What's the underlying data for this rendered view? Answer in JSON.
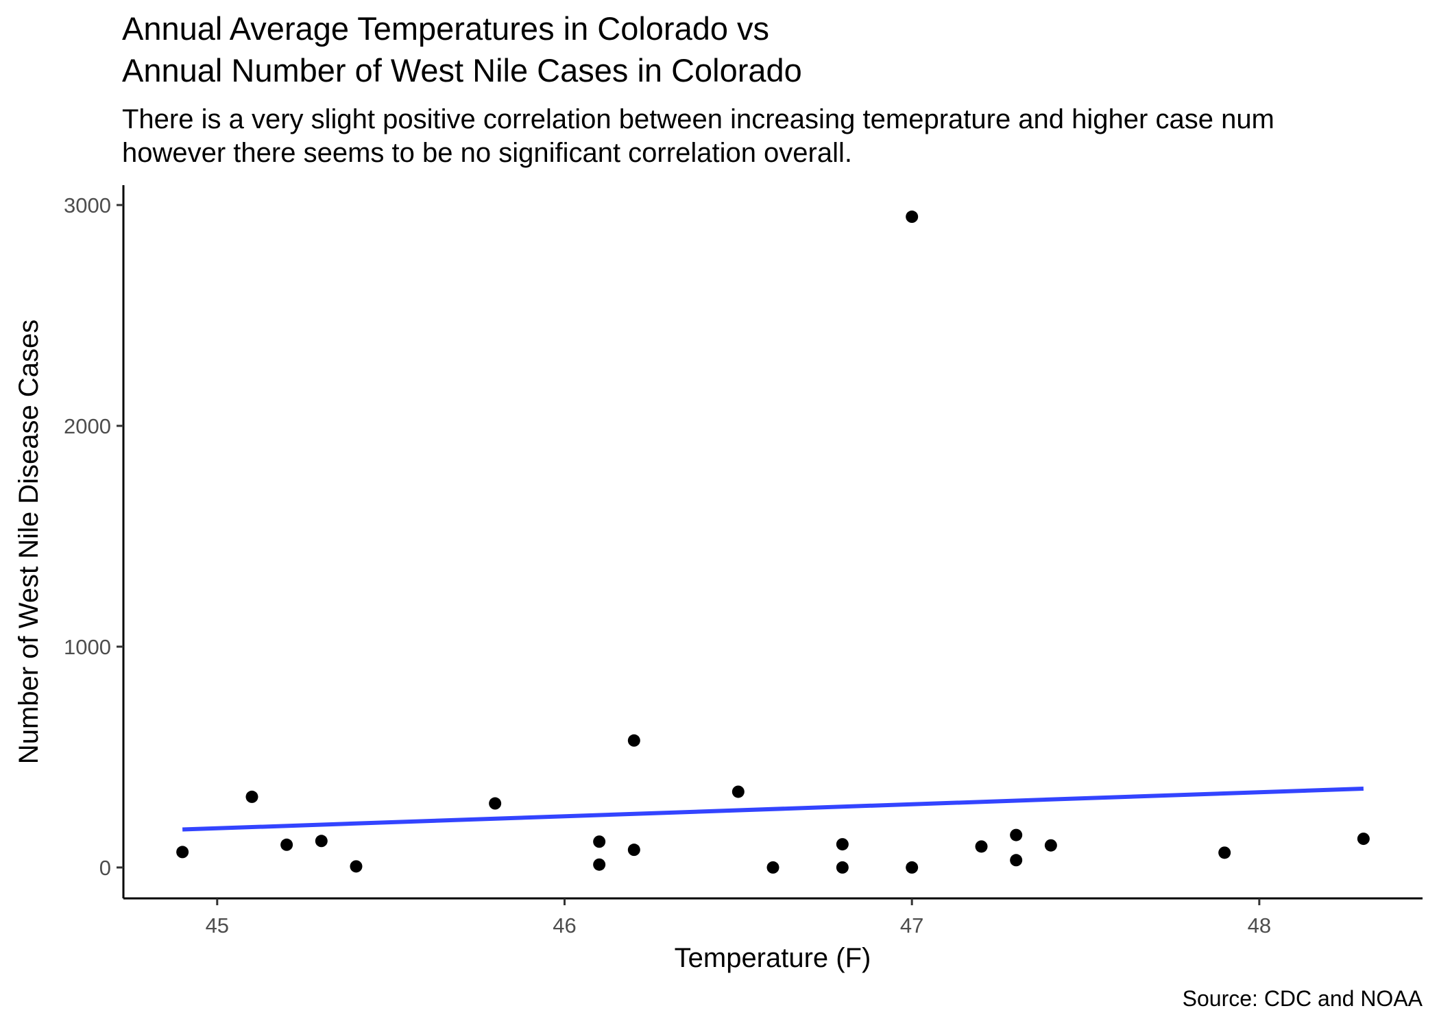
{
  "chart_data": {
    "type": "scatter",
    "title_lines": [
      "Annual Average Temperatures in Colorado vs",
      "Annual Number of West Nile Cases in Colorado"
    ],
    "subtitle_lines": [
      "There is a very slight positive correlation between increasing temeprature and higher case num",
      "however there seems to be no significant correlation overall."
    ],
    "xlabel": "Temperature (F)",
    "ylabel": "Number of West Nile Disease Cases",
    "caption": "Source: CDC and NOAA",
    "xlim": [
      44.73,
      48.47
    ],
    "ylim": [
      -140,
      3090
    ],
    "x_ticks": [
      45,
      46,
      47,
      48
    ],
    "y_ticks": [
      0,
      1000,
      2000,
      3000
    ],
    "grid": false,
    "points": [
      {
        "x": 44.9,
        "y": 70
      },
      {
        "x": 45.1,
        "y": 320
      },
      {
        "x": 45.2,
        "y": 103
      },
      {
        "x": 45.3,
        "y": 120
      },
      {
        "x": 45.4,
        "y": 5
      },
      {
        "x": 45.8,
        "y": 290
      },
      {
        "x": 46.1,
        "y": 117
      },
      {
        "x": 46.1,
        "y": 13
      },
      {
        "x": 46.2,
        "y": 575
      },
      {
        "x": 46.2,
        "y": 80
      },
      {
        "x": 46.5,
        "y": 343
      },
      {
        "x": 46.6,
        "y": 0
      },
      {
        "x": 46.8,
        "y": 105
      },
      {
        "x": 46.8,
        "y": 0
      },
      {
        "x": 47.0,
        "y": 2947
      },
      {
        "x": 47.0,
        "y": 0
      },
      {
        "x": 47.2,
        "y": 95
      },
      {
        "x": 47.3,
        "y": 147
      },
      {
        "x": 47.3,
        "y": 33
      },
      {
        "x": 47.4,
        "y": 100
      },
      {
        "x": 47.9,
        "y": 67
      },
      {
        "x": 48.3,
        "y": 130
      }
    ],
    "trend_line": {
      "color": "#3344ff",
      "x": [
        44.9,
        48.3
      ],
      "y": [
        172,
        357
      ]
    },
    "point_color": "#000000"
  }
}
